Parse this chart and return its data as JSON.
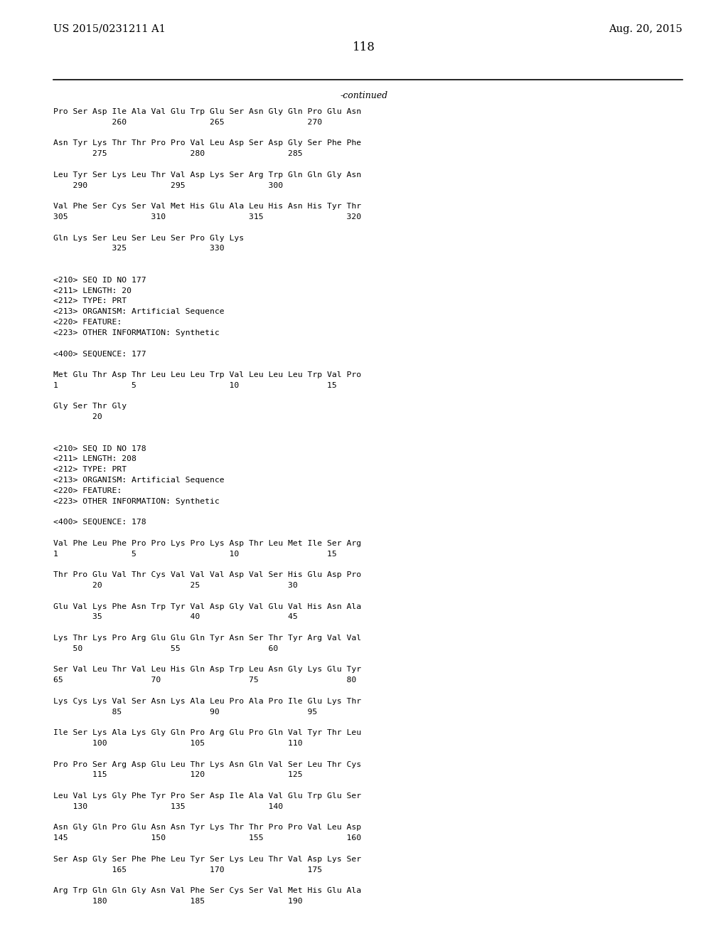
{
  "header_left": "US 2015/0231211 A1",
  "header_right": "Aug. 20, 2015",
  "page_number": "118",
  "continued_label": "-continued",
  "background_color": "#ffffff",
  "text_color": "#000000",
  "font_size": 8.5,
  "header_font_size": 10.5,
  "page_num_font_size": 12,
  "content_lines": [
    "Pro Ser Asp Ile Ala Val Glu Trp Glu Ser Asn Gly Gln Pro Glu Asn",
    "            260                 265                 270",
    "",
    "Asn Tyr Lys Thr Thr Pro Pro Val Leu Asp Ser Asp Gly Ser Phe Phe",
    "        275                 280                 285",
    "",
    "Leu Tyr Ser Lys Leu Thr Val Asp Lys Ser Arg Trp Gln Gln Gly Asn",
    "    290                 295                 300",
    "",
    "Val Phe Ser Cys Ser Val Met His Glu Ala Leu His Asn His Tyr Thr",
    "305                 310                 315                 320",
    "",
    "Gln Lys Ser Leu Ser Leu Ser Pro Gly Lys",
    "            325                 330",
    "",
    "",
    "<210> SEQ ID NO 177",
    "<211> LENGTH: 20",
    "<212> TYPE: PRT",
    "<213> ORGANISM: Artificial Sequence",
    "<220> FEATURE:",
    "<223> OTHER INFORMATION: Synthetic",
    "",
    "<400> SEQUENCE: 177",
    "",
    "Met Glu Thr Asp Thr Leu Leu Leu Trp Val Leu Leu Leu Trp Val Pro",
    "1               5                   10                  15",
    "",
    "Gly Ser Thr Gly",
    "        20",
    "",
    "",
    "<210> SEQ ID NO 178",
    "<211> LENGTH: 208",
    "<212> TYPE: PRT",
    "<213> ORGANISM: Artificial Sequence",
    "<220> FEATURE:",
    "<223> OTHER INFORMATION: Synthetic",
    "",
    "<400> SEQUENCE: 178",
    "",
    "Val Phe Leu Phe Pro Pro Lys Pro Lys Asp Thr Leu Met Ile Ser Arg",
    "1               5                   10                  15",
    "",
    "Thr Pro Glu Val Thr Cys Val Val Val Asp Val Ser His Glu Asp Pro",
    "        20                  25                  30",
    "",
    "Glu Val Lys Phe Asn Trp Tyr Val Asp Gly Val Glu Val His Asn Ala",
    "        35                  40                  45",
    "",
    "Lys Thr Lys Pro Arg Glu Glu Gln Tyr Asn Ser Thr Tyr Arg Val Val",
    "    50                  55                  60",
    "",
    "Ser Val Leu Thr Val Leu His Gln Asp Trp Leu Asn Gly Lys Glu Tyr",
    "65                  70                  75                  80",
    "",
    "Lys Cys Lys Val Ser Asn Lys Ala Leu Pro Ala Pro Ile Glu Lys Thr",
    "            85                  90                  95",
    "",
    "Ile Ser Lys Ala Lys Gly Gln Pro Arg Glu Pro Gln Val Tyr Thr Leu",
    "        100                 105                 110",
    "",
    "Pro Pro Ser Arg Asp Glu Leu Thr Lys Asn Gln Val Ser Leu Thr Cys",
    "        115                 120                 125",
    "",
    "Leu Val Lys Gly Phe Tyr Pro Ser Asp Ile Ala Val Glu Trp Glu Ser",
    "    130                 135                 140",
    "",
    "Asn Gly Gln Pro Glu Asn Asn Tyr Lys Thr Thr Pro Pro Val Leu Asp",
    "145                 150                 155                 160",
    "",
    "Ser Asp Gly Ser Phe Phe Leu Tyr Ser Lys Leu Thr Val Asp Lys Ser",
    "            165                 170                 175",
    "",
    "Arg Trp Gln Gln Gly Asn Val Phe Ser Cys Ser Val Met His Glu Ala",
    "        180                 185                 190"
  ]
}
